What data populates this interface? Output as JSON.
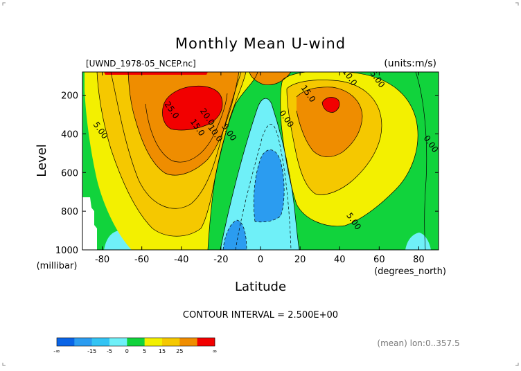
{
  "chart_data": {
    "type": "heatmap",
    "title": "Monthly Mean U-wind",
    "subtitle_left": "[UWND_1978-05_NCEP.nc]",
    "subtitle_right": "(units:m/s)",
    "xlabel": "Latitude",
    "x_unit": "(degrees_north)",
    "ylabel": "Level",
    "y_unit": "(millibar)",
    "xlim": [
      -90,
      90
    ],
    "ylim": [
      1000,
      80
    ],
    "x_ticks": [
      -80,
      -60,
      -40,
      -20,
      0,
      20,
      40,
      60,
      80
    ],
    "y_ticks": [
      200,
      400,
      600,
      800,
      1000
    ],
    "footer": "CONTOUR INTERVAL = 2.500E+00",
    "mean_note": "(mean) lon:0..357.5",
    "contour_labels": [
      {
        "text": "5.00",
        "lat": -82,
        "lev": 390
      },
      {
        "text": "25.0",
        "lat": -46,
        "lev": 285
      },
      {
        "text": "15.0",
        "lat": -33,
        "lev": 375
      },
      {
        "text": "20.0",
        "lat": -28,
        "lev": 320
      },
      {
        "text": "10.0",
        "lat": -24,
        "lev": 405
      },
      {
        "text": "5.00",
        "lat": -17,
        "lev": 400
      },
      {
        "text": "0.00",
        "lat": 12,
        "lev": 330
      },
      {
        "text": "15.0",
        "lat": 23,
        "lev": 200
      },
      {
        "text": "10.0",
        "lat": 44,
        "lev": 115
      },
      {
        "text": "5.00",
        "lat": 58,
        "lev": 125
      },
      {
        "text": "0.00",
        "lat": 85,
        "lev": 460
      },
      {
        "text": "5.00",
        "lat": 46,
        "lev": 860
      }
    ],
    "colorbar": {
      "boundary_labels": [
        "-∞",
        "-15",
        "-5",
        "0",
        "5",
        "15",
        "25",
        "∞"
      ],
      "colors": [
        "#0a64e6",
        "#2b9cf0",
        "#33c4f4",
        "#6ff0f8",
        "#11d33c",
        "#f3f000",
        "#f5c800",
        "#ef8d00",
        "#f20000"
      ]
    },
    "colors": {
      "neg_strong": "#2b9cf0",
      "neg": "#6ff0f8",
      "zero_to_5": "#11d33c",
      "five_to_10": "#f3f000",
      "ten_to_15": "#f5c800",
      "fifteen_to_25": "#ef8d00",
      "over_25": "#f20000",
      "missing": "#ffffff"
    }
  }
}
